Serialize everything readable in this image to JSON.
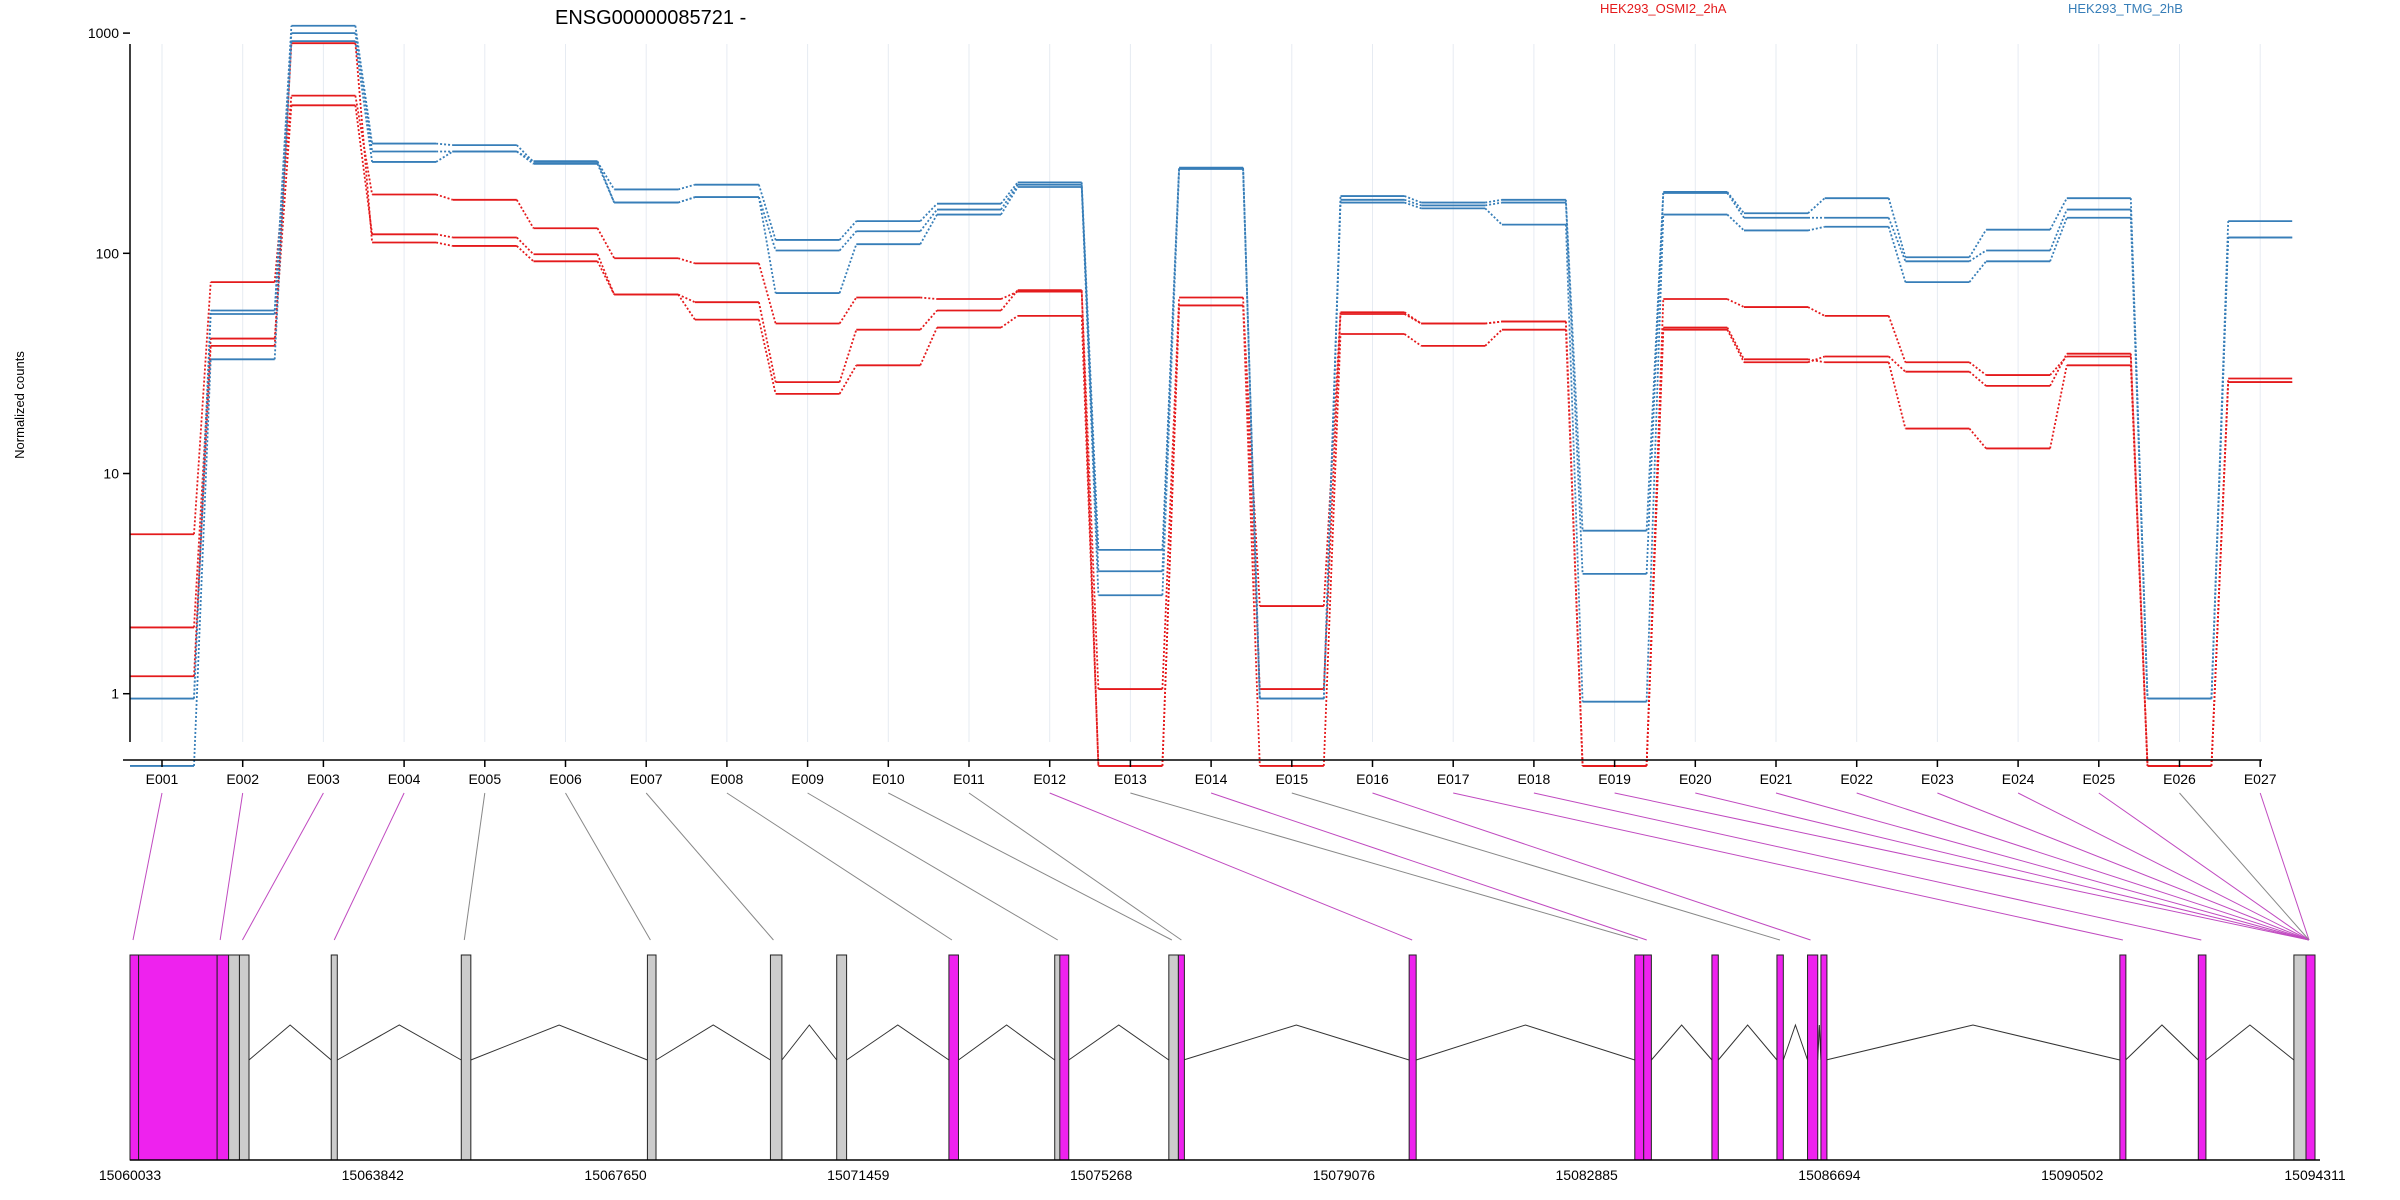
{
  "chart_data": {
    "type": "line",
    "title": "ENSG00000085721 -",
    "ylabel": "Normalized counts",
    "y_scale": "log",
    "y_ticks": [
      "1",
      "10",
      "100",
      "1000"
    ],
    "ylim": [
      0.5,
      1100
    ],
    "categories": [
      "E001",
      "E002",
      "E003",
      "E004",
      "E005",
      "E006",
      "E007",
      "E008",
      "E009",
      "E010",
      "E011",
      "E012",
      "E013",
      "E014",
      "E015",
      "E016",
      "E017",
      "E018",
      "E019",
      "E020",
      "E021",
      "E022",
      "E023",
      "E024",
      "E025",
      "E026",
      "E027"
    ],
    "legend": [
      {
        "name": "HEK293_OSMI2_2hA",
        "color": "#e41a1c"
      },
      {
        "name": "HEK293_TMG_2hB",
        "color": "#377eb8"
      }
    ],
    "series": [
      {
        "group": 0,
        "color": "#e41a1c",
        "values": [
          5.3,
          74,
          520,
          185,
          175,
          130,
          95,
          90,
          48,
          63,
          62,
          67,
          1.05,
          63,
          1.05,
          53,
          48,
          49,
          0.47,
          62,
          57,
          52,
          32,
          28,
          34,
          0.47,
          27
        ]
      },
      {
        "group": 0,
        "color": "#e41a1c",
        "values": [
          2.0,
          41,
          470,
          122,
          118,
          99,
          65,
          60,
          26,
          45,
          55,
          68,
          0.47,
          58,
          2.5,
          54,
          48,
          49,
          0.47,
          45,
          32,
          34,
          29,
          25,
          35,
          0.47,
          26
        ]
      },
      {
        "group": 0,
        "color": "#e41a1c",
        "values": [
          1.2,
          38,
          900,
          112,
          108,
          92,
          65,
          50,
          23,
          31,
          46,
          52,
          0.47,
          58,
          0.47,
          43,
          38,
          45,
          0.47,
          46,
          33,
          32,
          16,
          13,
          31,
          0.47,
          26
        ]
      },
      {
        "group": 1,
        "color": "#377eb8",
        "values": [
          0.95,
          55,
          1080,
          315,
          310,
          260,
          195,
          205,
          115,
          140,
          168,
          210,
          4.5,
          245,
          0.95,
          182,
          170,
          175,
          5.5,
          190,
          152,
          178,
          96,
          128,
          178,
          0.95,
          140
        ]
      },
      {
        "group": 1,
        "color": "#377eb8",
        "values": [
          0.95,
          53,
          1000,
          290,
          290,
          262,
          170,
          180,
          103,
          126,
          158,
          205,
          3.6,
          242,
          0.95,
          175,
          165,
          170,
          3.5,
          188,
          145,
          145,
          92,
          103,
          158,
          0.95,
          118
        ]
      },
      {
        "group": 1,
        "color": "#377eb8",
        "values": [
          0.47,
          33,
          920,
          260,
          290,
          255,
          170,
          180,
          66,
          110,
          150,
          200,
          2.8,
          242,
          0.95,
          170,
          160,
          135,
          0.92,
          150,
          127,
          132,
          74,
          92,
          145,
          0.95,
          118
        ]
      }
    ],
    "genomic_ticks": [
      "15060033",
      "15063842",
      "15067650",
      "15071459",
      "15075268",
      "15079076",
      "15082885",
      "15086694",
      "15090502",
      "15094311"
    ],
    "exon_spans": [
      [
        0,
        1
      ],
      [
        2,
        4
      ],
      [
        4,
        5
      ],
      [
        5,
        6
      ],
      [
        6,
        7
      ],
      [
        7,
        8
      ],
      [
        8,
        9
      ],
      [
        10,
        11
      ],
      [
        11,
        12
      ],
      [
        13,
        14
      ],
      [
        14,
        15
      ],
      [
        15,
        16
      ],
      [
        16,
        17
      ],
      [
        17,
        18
      ],
      [
        19,
        20
      ],
      [
        20,
        21
      ],
      [
        22,
        23
      ],
      [
        23,
        24
      ],
      [
        25,
        26
      ],
      [
        26,
        27
      ],
      [
        27,
        28
      ],
      [
        28,
        29
      ],
      [
        29,
        30
      ],
      [
        30,
        31
      ],
      [
        31,
        32
      ],
      [
        32,
        33
      ],
      [
        33,
        34
      ]
    ],
    "exon_highlight": [
      true,
      true,
      true,
      true,
      false,
      false,
      false,
      false,
      false,
      false,
      false,
      true,
      false,
      true,
      false,
      true,
      true,
      true,
      true,
      true,
      true,
      true,
      true,
      true,
      true,
      false,
      true
    ],
    "gene_track": {
      "gene_start": 15060033,
      "gene_end": 15094311,
      "blocks": [
        {
          "start": 15060033,
          "end": 15060168,
          "highlight": true
        },
        {
          "start": 15060168,
          "end": 15061400,
          "highlight": true
        },
        {
          "start": 15061400,
          "end": 15061580,
          "highlight": true
        },
        {
          "start": 15061580,
          "end": 15061750,
          "highlight": false
        },
        {
          "start": 15061750,
          "end": 15061900,
          "highlight": false
        },
        {
          "start": 15063190,
          "end": 15063285,
          "highlight": false
        },
        {
          "start": 15065230,
          "end": 15065380,
          "highlight": false
        },
        {
          "start": 15068150,
          "end": 15068285,
          "highlight": false
        },
        {
          "start": 15070080,
          "end": 15070260,
          "highlight": false
        },
        {
          "start": 15071120,
          "end": 15071275,
          "highlight": false
        },
        {
          "start": 15072880,
          "end": 15073030,
          "highlight": true
        },
        {
          "start": 15074540,
          "end": 15074620,
          "highlight": false
        },
        {
          "start": 15074620,
          "end": 15074760,
          "highlight": true
        },
        {
          "start": 15076330,
          "end": 15076480,
          "highlight": false
        },
        {
          "start": 15076480,
          "end": 15076560,
          "highlight": true
        },
        {
          "start": 15080100,
          "end": 15080210,
          "highlight": true
        },
        {
          "start": 15083640,
          "end": 15083780,
          "highlight": true
        },
        {
          "start": 15083780,
          "end": 15083900,
          "highlight": true
        },
        {
          "start": 15084850,
          "end": 15084950,
          "highlight": true
        },
        {
          "start": 15085870,
          "end": 15085970,
          "highlight": true
        },
        {
          "start": 15086350,
          "end": 15086510,
          "highlight": true
        },
        {
          "start": 15086560,
          "end": 15086640,
          "highlight": true
        },
        {
          "start": 15091250,
          "end": 15091340,
          "highlight": true
        },
        {
          "start": 15092480,
          "end": 15092600,
          "highlight": true
        },
        {
          "start": 15093980,
          "end": 15094170,
          "highlight": false
        },
        {
          "start": 15094170,
          "end": 15094311,
          "highlight": true
        }
      ]
    }
  }
}
